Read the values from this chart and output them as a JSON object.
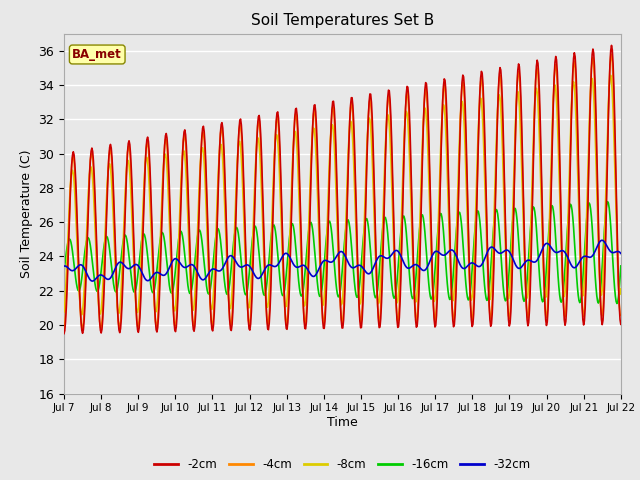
{
  "title": "Soil Temperatures Set B",
  "xlabel": "Time",
  "ylabel": "Soil Temperature (C)",
  "ylim": [
    16,
    37
  ],
  "yticks": [
    16,
    18,
    20,
    22,
    24,
    26,
    28,
    30,
    32,
    34,
    36
  ],
  "annotation": "BA_met",
  "fig_bg_color": "#e8e8e8",
  "plot_bg_color": "#e8e8e8",
  "grid_color": "#ffffff",
  "series_colors": [
    "#cc0000",
    "#ff8800",
    "#ddcc00",
    "#00cc00",
    "#0000cc"
  ],
  "series_labels": [
    "-2cm",
    "-4cm",
    "-8cm",
    "-16cm",
    "-32cm"
  ],
  "xtick_labels": [
    "Jul 7",
    "Jul 8",
    "Jul 9",
    "Jul 10",
    "Jul 11",
    "Jul 12",
    "Jul 13",
    "Jul 14",
    "Jul 15",
    "Jul 16",
    "Jul 17",
    "Jul 18",
    "Jul 19",
    "Jul 20",
    "Jul 21",
    "Jul 22"
  ]
}
